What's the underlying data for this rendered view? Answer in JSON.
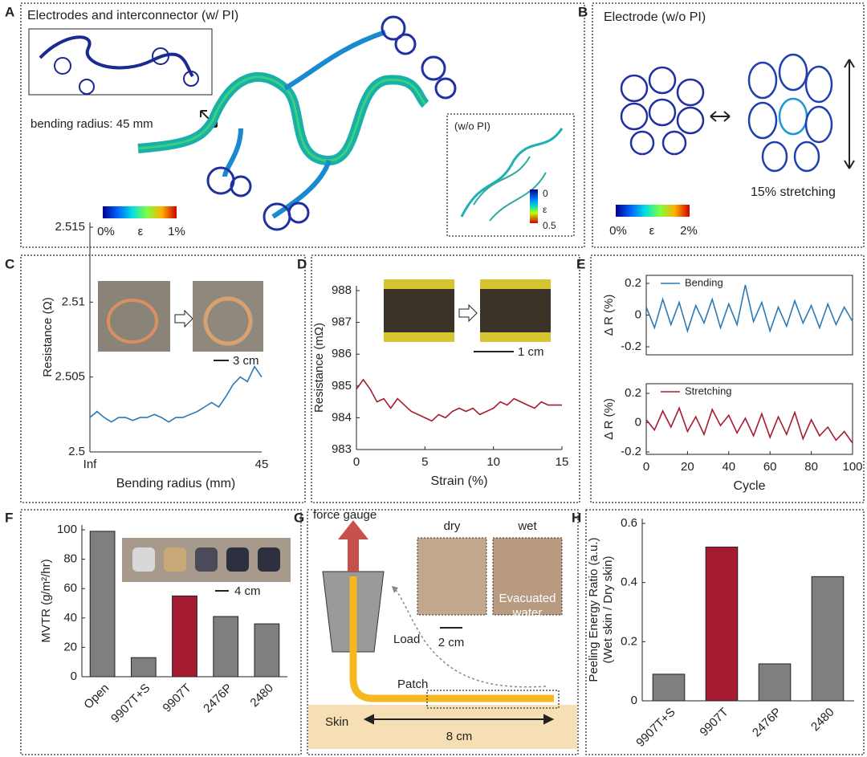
{
  "panel_labels": [
    "A",
    "B",
    "C",
    "D",
    "E",
    "F",
    "G",
    "H"
  ],
  "panel_a": {
    "title": "Electrodes and interconnector (w/ PI)",
    "bending_radius": "bending radius: 45 mm",
    "colorbar": [
      "0%",
      "ε",
      "1%"
    ],
    "inset_title": "(w/o PI)",
    "inset_colorbar": [
      "0",
      "ε",
      "0.5"
    ]
  },
  "panel_b": {
    "title": "Electrode (w/o PI)",
    "stretching": "15% stretching",
    "colorbar": [
      "0%",
      "ε",
      "2%"
    ]
  },
  "scale_bars": {
    "c": "3 cm",
    "d": "1 cm",
    "f": "4 cm"
  },
  "panel_g": {
    "force_gauge": "force gauge",
    "dry": "dry",
    "wet": "wet",
    "scale": "2 cm",
    "evacuated": [
      "Evacuated",
      "water"
    ],
    "load": "Load",
    "patch": "Patch",
    "skin": "Skin",
    "length": "8 cm"
  },
  "chart_data": [
    {
      "type": "line",
      "color": "#2a7ab8",
      "categories": [
        "Inf",
        null,
        null,
        null,
        null,
        null,
        null,
        null,
        null,
        null,
        null,
        null,
        null,
        null,
        null,
        null,
        null,
        null,
        null,
        null,
        null,
        null,
        null,
        null,
        "45"
      ],
      "values": [
        2.5023,
        2.5027,
        2.5023,
        2.502,
        2.5023,
        2.5023,
        2.5021,
        2.5023,
        2.5023,
        2.5025,
        2.5023,
        2.502,
        2.5023,
        2.5023,
        2.5025,
        2.5027,
        2.503,
        2.5033,
        2.503,
        2.5037,
        2.5045,
        2.505,
        2.5047,
        2.5057,
        2.505
      ],
      "ylim": [
        2.5,
        2.515
      ],
      "yticks": [
        2.5,
        2.505,
        2.51,
        2.515
      ],
      "ylabel": "Resistance (Ω)",
      "xlabel": "Bending radius (mm)"
    },
    {
      "type": "line",
      "color": "#a51c30",
      "x": [
        0,
        0.5,
        1,
        1.5,
        2,
        2.5,
        3,
        3.5,
        4,
        4.5,
        5,
        5.5,
        6,
        6.5,
        7,
        7.5,
        8,
        8.5,
        9,
        9.5,
        10,
        10.5,
        11,
        11.5,
        12,
        12.5,
        13,
        13.5,
        14,
        14.5,
        15
      ],
      "values": [
        984.9,
        985.2,
        984.9,
        984.5,
        984.6,
        984.3,
        984.6,
        984.4,
        984.2,
        984.1,
        984,
        983.9,
        984.1,
        984,
        984.2,
        984.3,
        984.2,
        984.3,
        984.1,
        984.2,
        984.3,
        984.5,
        984.4,
        984.6,
        984.5,
        984.4,
        984.3,
        984.5,
        984.4,
        984.4,
        984.4
      ],
      "xlim": [
        0,
        15
      ],
      "xticks": [
        0,
        5,
        10,
        15
      ],
      "ylim": [
        983,
        988
      ],
      "yticks": [
        983,
        984,
        985,
        986,
        987,
        988
      ],
      "ylabel": "Resistance (mΩ)",
      "xlabel": "Strain (%)"
    },
    {
      "type": "line",
      "box": true,
      "x": [
        0,
        4,
        8,
        12,
        16,
        20,
        24,
        28,
        32,
        36,
        40,
        44,
        48,
        52,
        56,
        60,
        64,
        68,
        72,
        76,
        80,
        84,
        88,
        92,
        96,
        100
      ],
      "series": [
        {
          "name": "Bending",
          "color": "#2a7ab8",
          "values": [
            0.05,
            -0.08,
            0.1,
            -0.06,
            0.08,
            -0.1,
            0.06,
            -0.05,
            0.1,
            -0.08,
            0.07,
            -0.06,
            0.19,
            -0.04,
            0.08,
            -0.1,
            0.05,
            -0.07,
            0.09,
            -0.05,
            0.06,
            -0.08,
            0.07,
            -0.06,
            0.05,
            -0.04
          ]
        }
      ],
      "xlim": [
        0,
        100
      ],
      "ylim": [
        -0.2,
        0.2
      ],
      "yticks": [
        -0.2,
        0,
        0.2
      ],
      "ylabel": "Δ R (%)"
    },
    {
      "type": "line",
      "box": true,
      "x": [
        0,
        4,
        8,
        12,
        16,
        20,
        24,
        28,
        32,
        36,
        40,
        44,
        48,
        52,
        56,
        60,
        64,
        68,
        72,
        76,
        80,
        84,
        88,
        92,
        96,
        100
      ],
      "series": [
        {
          "name": "Stretching",
          "color": "#a51c30",
          "values": [
            0.02,
            -0.05,
            0.08,
            -0.03,
            0.1,
            -0.06,
            0.04,
            -0.08,
            0.09,
            -0.02,
            0.05,
            -0.07,
            0.03,
            -0.09,
            0.06,
            -0.1,
            0.04,
            -0.08,
            0.07,
            -0.11,
            0.02,
            -0.09,
            -0.03,
            -0.12,
            -0.06,
            -0.14
          ]
        }
      ],
      "xlim": [
        0,
        100
      ],
      "xticks": [
        0,
        20,
        40,
        60,
        80,
        100
      ],
      "ylim": [
        -0.2,
        0.2
      ],
      "yticks": [
        -0.2,
        0,
        0.2
      ],
      "ylabel": "Δ R (%)",
      "xlabel": "Cycle"
    },
    {
      "type": "bar",
      "categories": [
        "Open",
        "9907T+S",
        "9907T",
        "2476P",
        "2480"
      ],
      "values": [
        99,
        13,
        55,
        41,
        36
      ],
      "colors": [
        "#7f7f7f",
        "#7f7f7f",
        "#a51c30",
        "#7f7f7f",
        "#7f7f7f"
      ],
      "ylim": [
        0,
        100
      ],
      "yticks": [
        0,
        20,
        40,
        60,
        80,
        100
      ],
      "ylabel": "MVTR (g/m²/hr)"
    },
    {
      "type": "bar",
      "categories": [
        "9907T+S",
        "9907T",
        "2476P",
        "2480"
      ],
      "values": [
        0.09,
        0.52,
        0.125,
        0.42
      ],
      "colors": [
        "#7f7f7f",
        "#a51c30",
        "#7f7f7f",
        "#7f7f7f"
      ],
      "ylim": [
        0,
        0.6
      ],
      "yticks": [
        0,
        0.2,
        0.4,
        0.6
      ],
      "ylabel": [
        "Peeling Energy Ratio (a.u.)",
        "(Wet skin / Dry skin)"
      ]
    }
  ]
}
